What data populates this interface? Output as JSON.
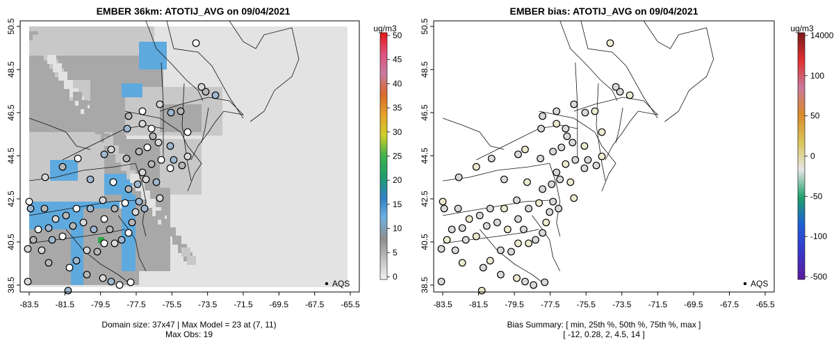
{
  "left_panel": {
    "title": "EMBER 36km: ATOTIJ_AVG on 09/04/2021",
    "footer_line1": "Domain size: 37x47 | Max Model = 23 at (7, 11)",
    "footer_line2": "Max Obs: 19",
    "colorbar_unit": "ug/m3",
    "colorbar_ticks": [
      "0",
      "5",
      "10",
      "15",
      "20",
      "25",
      "30",
      "35",
      "40",
      "45",
      "50"
    ],
    "legend_label": "AQS"
  },
  "right_panel": {
    "title": "EMBER bias: ATOTIJ_AVG on 09/04/2021",
    "footer_line1": "Bias Summary: [ min, 25th %, 50th %, 75th %, max ]",
    "footer_line2": "[ -12,   0.28,   2,   4.5,   14 ]",
    "colorbar_unit": "ug/m3",
    "colorbar_ticks": [
      "-500",
      "-100",
      "-50",
      "0",
      "50",
      "100",
      "14000"
    ],
    "legend_label": "AQS"
  },
  "axes": {
    "x_ticks": [
      "-83.5",
      "-81.5",
      "-79.5",
      "-77.5",
      "-75.5",
      "-73.5",
      "-71.5",
      "-69.5",
      "-67.5",
      "-65.5"
    ],
    "y_ticks": [
      "38.5",
      "40.5",
      "42.5",
      "44.5",
      "46.5",
      "48.5",
      "50.5"
    ]
  },
  "colors": {
    "grid_light": "#e3e3e3",
    "grid_mid": "#c8c8c8",
    "grid_dark": "#a8a8a8",
    "grid_blue": "#5eaadf",
    "grid_green": "#2ea84a",
    "bias_near_zero": "#d9d9d9",
    "bias_positive": "#ecebcf"
  }
}
